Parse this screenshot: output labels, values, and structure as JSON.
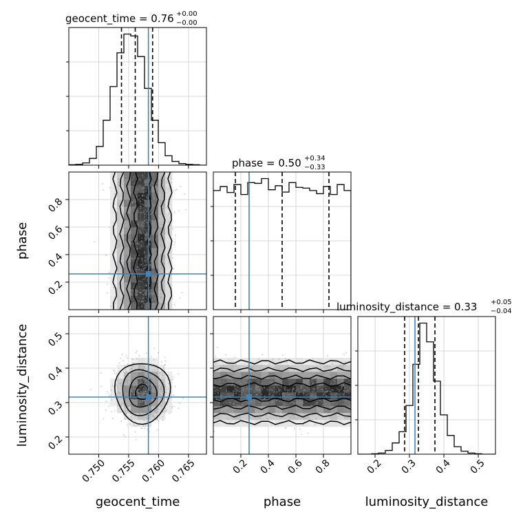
{
  "chart_data": {
    "type": "corner",
    "parameters": [
      "geocent_time",
      "phase",
      "luminosity_distance"
    ],
    "axis_labels": [
      "geocent_time",
      "phase",
      "luminosity_distance"
    ],
    "titles": [
      {
        "base": "geocent_time = 0.76",
        "plus": "+0.00",
        "minus": "−0.00"
      },
      {
        "base": "phase = 0.50",
        "plus": "+0.34",
        "minus": "−0.33"
      },
      {
        "base": "luminosity_distance = 0.33",
        "plus": "+0.05",
        "minus": "−0.04"
      }
    ],
    "ranges": [
      [
        0.745,
        0.768
      ],
      [
        0.0,
        1.0
      ],
      [
        0.15,
        0.55
      ]
    ],
    "ticks": [
      {
        "values": [
          0.75,
          0.755,
          0.76,
          0.765
        ],
        "labels": [
          "0.750",
          "0.755",
          "0.760",
          "0.765"
        ]
      },
      {
        "values": [
          0.2,
          0.4,
          0.6,
          0.8
        ],
        "labels": [
          "0.2",
          "0.4",
          "0.6",
          "0.8"
        ]
      },
      {
        "values": [
          0.2,
          0.3,
          0.4,
          0.5
        ],
        "labels": [
          "0.2",
          "0.3",
          "0.4",
          "0.5"
        ]
      }
    ],
    "truths": [
      0.7583,
      0.26,
      0.316
    ],
    "quantiles": [
      [
        0.7538,
        0.7561,
        0.759
      ],
      [
        0.16,
        0.5,
        0.84
      ],
      [
        0.286,
        0.326,
        0.374
      ]
    ],
    "histograms": [
      {
        "counts": [
          1,
          2,
          6,
          18,
          50,
          120,
          210,
          300,
          350,
          345,
          290,
          205,
          120,
          60,
          25,
          10,
          4,
          2,
          1,
          0
        ]
      },
      {
        "counts": [
          300,
          310,
          295,
          315,
          290,
          320,
          318,
          330,
          302,
          312,
          296,
          320,
          308,
          306,
          300,
          292,
          310,
          290,
          315,
          300
        ]
      },
      {
        "counts": [
          0,
          0,
          1,
          3,
          10,
          30,
          60,
          130,
          240,
          350,
          300,
          195,
          105,
          50,
          20,
          8,
          3,
          1,
          0,
          0
        ]
      }
    ],
    "colors": {
      "truth": "#4682b4",
      "hist": "#000000",
      "grid": "#cccccc"
    }
  }
}
